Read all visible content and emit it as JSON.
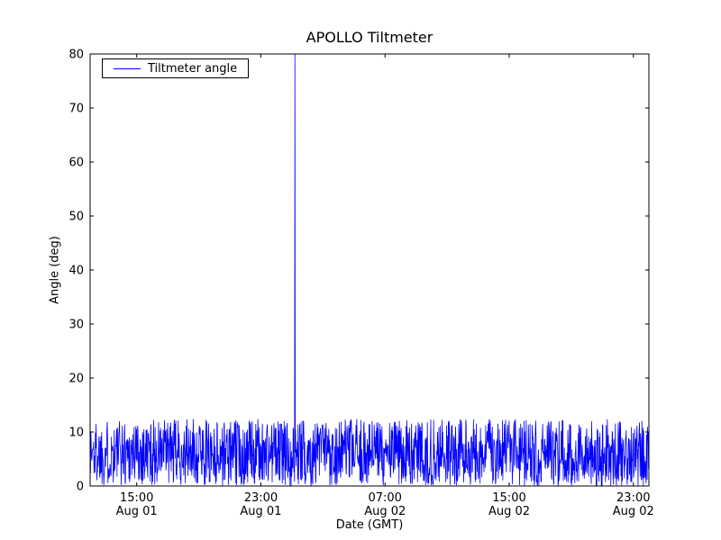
{
  "figure": {
    "background": "#ffffff",
    "axis_color": "#000000",
    "text_color": "#000000"
  },
  "chart_data": {
    "type": "line",
    "title": "APOLLO Tiltmeter",
    "xlabel": "Date (GMT)",
    "ylabel": "Angle (deg)",
    "ylim": [
      0,
      80
    ],
    "yticks": [
      0,
      10,
      20,
      30,
      40,
      50,
      60,
      70,
      80
    ],
    "x_hours_span": 36,
    "xticks": [
      {
        "hour": 3,
        "time": "15:00",
        "date": "Aug 01"
      },
      {
        "hour": 11,
        "time": "23:00",
        "date": "Aug 01"
      },
      {
        "hour": 19,
        "time": "07:00",
        "date": "Aug 02"
      },
      {
        "hour": 27,
        "time": "15:00",
        "date": "Aug 02"
      },
      {
        "hour": 35,
        "time": "23:00",
        "date": "Aug 02"
      }
    ],
    "grid": false,
    "legend": {
      "position": "upper left",
      "entries": [
        "Tiltmeter angle"
      ]
    },
    "series": [
      {
        "name": "Tiltmeter angle",
        "color": "#0000ff",
        "line_width": 0.8,
        "noise_band": {
          "min": 0,
          "max": 12.4,
          "points": 1600,
          "seed": 1337
        },
        "spike": {
          "hour": 13.2,
          "value": 80
        }
      }
    ]
  }
}
